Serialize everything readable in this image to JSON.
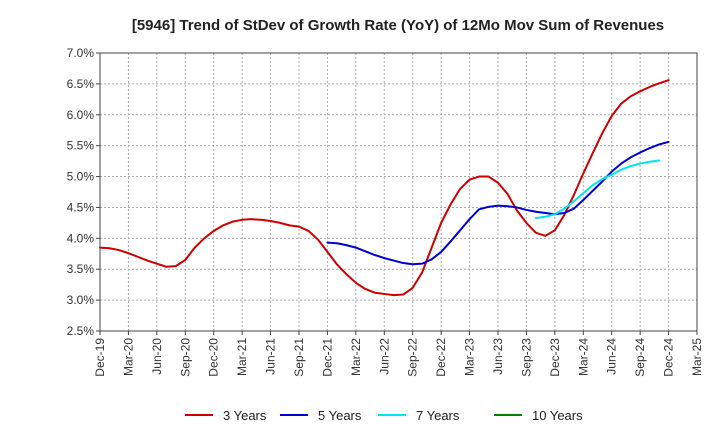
{
  "chart_data": {
    "type": "line",
    "title": "[5946]  Trend of StDev of Growth Rate (YoY) of 12Mo Mov Sum of Revenues",
    "xlabel": "",
    "ylabel": "",
    "ylim": [
      0.025,
      0.07
    ],
    "y_ticks": [
      0.025,
      0.03,
      0.035,
      0.04,
      0.045,
      0.05,
      0.055,
      0.06,
      0.065,
      0.07
    ],
    "y_tick_labels": [
      "2.5%",
      "3.0%",
      "3.5%",
      "4.0%",
      "4.5%",
      "5.0%",
      "5.5%",
      "6.0%",
      "6.5%",
      "7.0%"
    ],
    "x_range": [
      0,
      63
    ],
    "x_tick_positions": [
      0,
      3,
      6,
      9,
      12,
      15,
      18,
      21,
      24,
      27,
      30,
      33,
      36,
      39,
      42,
      45,
      48,
      51,
      54,
      57,
      60,
      63
    ],
    "x_tick_labels": [
      "Dec-19",
      "Mar-20",
      "Jun-20",
      "Sep-20",
      "Dec-20",
      "Mar-21",
      "Jun-21",
      "Sep-21",
      "Dec-21",
      "Mar-22",
      "Jun-22",
      "Sep-22",
      "Dec-22",
      "Mar-23",
      "Jun-23",
      "Sep-23",
      "Dec-23",
      "Mar-24",
      "Jun-24",
      "Sep-24",
      "Dec-24",
      "Mar-25"
    ],
    "grid": true,
    "legend_position": "bottom",
    "series": [
      {
        "name": "3 Years",
        "color": "#cc0000",
        "x_start": 0,
        "values": [
          0.0385,
          0.0384,
          0.0381,
          0.0376,
          0.037,
          0.0364,
          0.0359,
          0.0354,
          0.0355,
          0.0365,
          0.0385,
          0.04,
          0.0412,
          0.0421,
          0.0427,
          0.043,
          0.0431,
          0.043,
          0.0428,
          0.0425,
          0.0421,
          0.0419,
          0.0412,
          0.0398,
          0.0378,
          0.0358,
          0.0342,
          0.0328,
          0.0318,
          0.0312,
          0.031,
          0.0308,
          0.0309,
          0.032,
          0.0345,
          0.0385,
          0.0425,
          0.0455,
          0.048,
          0.0495,
          0.05,
          0.05,
          0.049,
          0.0472,
          0.0445,
          0.0425,
          0.0409,
          0.0404,
          0.0413,
          0.0438,
          0.047,
          0.0505,
          0.0538,
          0.057,
          0.0598,
          0.0618,
          0.063,
          0.0638,
          0.0645,
          0.0651,
          0.0656
        ]
      },
      {
        "name": "5 Years",
        "color": "#0000cc",
        "x_start": 24,
        "values": [
          0.0393,
          0.0392,
          0.0389,
          0.0385,
          0.0379,
          0.0373,
          0.0368,
          0.0364,
          0.036,
          0.0358,
          0.0359,
          0.0366,
          0.0378,
          0.0395,
          0.0413,
          0.0431,
          0.0447,
          0.0451,
          0.0453,
          0.0452,
          0.045,
          0.0446,
          0.0443,
          0.0441,
          0.0439,
          0.0441,
          0.0448,
          0.0462,
          0.0477,
          0.0492,
          0.0508,
          0.0521,
          0.0531,
          0.0539,
          0.0546,
          0.0552,
          0.0556
        ]
      },
      {
        "name": "7 Years",
        "color": "#00e5ee",
        "x_start": 46,
        "values": [
          0.0433,
          0.0435,
          0.0439,
          0.0448,
          0.046,
          0.0473,
          0.0486,
          0.0496,
          0.0503,
          0.0511,
          0.0517,
          0.0521,
          0.0524,
          0.0526
        ]
      },
      {
        "name": "10 Years",
        "color": "#008000",
        "x_start": 0,
        "values": []
      }
    ]
  }
}
